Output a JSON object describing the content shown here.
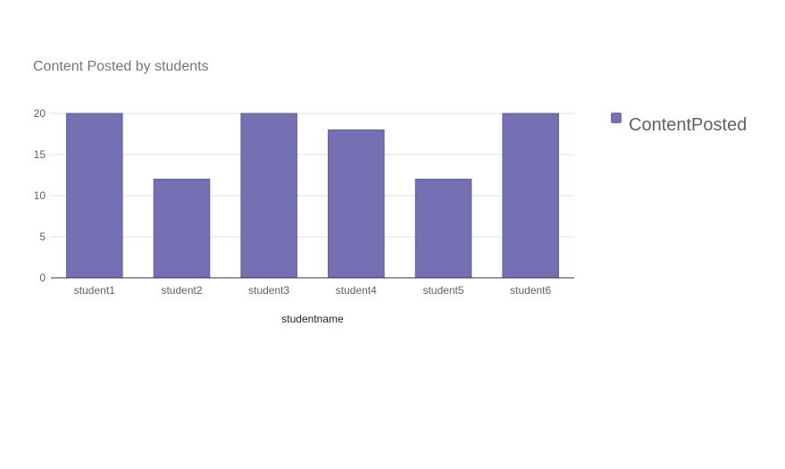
{
  "chart_data": {
    "type": "bar",
    "title": "Content Posted by students",
    "xlabel": "studentname",
    "ylabel": "",
    "categories": [
      "student1",
      "student2",
      "student3",
      "student4",
      "student5",
      "student6"
    ],
    "series": [
      {
        "name": "ContentPosted",
        "values": [
          20,
          12,
          20,
          18,
          12,
          20
        ],
        "color": "#7570b3"
      }
    ],
    "ylim": [
      0,
      20
    ],
    "yticks": [
      0,
      5,
      10,
      15,
      20
    ],
    "grid": true,
    "legend": "right"
  }
}
